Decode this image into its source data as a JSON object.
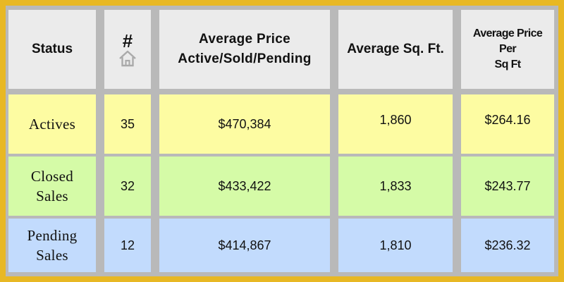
{
  "header": {
    "status": "Status",
    "count_symbol": "#",
    "count_icon": "home-icon",
    "avg_price_line1": "Average Price",
    "avg_price_line2": "Active/Sold/Pending",
    "avg_sqft": "Average Sq. Ft.",
    "avg_ppsf_line1": "Average Price",
    "avg_ppsf_line2": "Per",
    "avg_ppsf_line3": "Sq Ft"
  },
  "rows": [
    {
      "status_line1": "Actives",
      "status_line2": "",
      "count": "35",
      "avg_price": "$470,384",
      "avg_sqft": "1,860",
      "avg_ppsf": "$264.16"
    },
    {
      "status_line1": "Closed",
      "status_line2": "Sales",
      "count": "32",
      "avg_price": "$433,422",
      "avg_sqft": "1,833",
      "avg_ppsf": "$243.77"
    },
    {
      "status_line1": "Pending",
      "status_line2": "Sales",
      "count": "12",
      "avg_price": "$414,867",
      "avg_sqft": "1,810",
      "avg_ppsf": "$236.32"
    }
  ],
  "colors": {
    "border_gold": "#e8b824",
    "grid_gray": "#b9b9b9",
    "header_bg": "#ebebeb",
    "actives_bg": "#fdfca2",
    "closed_bg": "#d5fba7",
    "pending_bg": "#c2dbfd"
  }
}
